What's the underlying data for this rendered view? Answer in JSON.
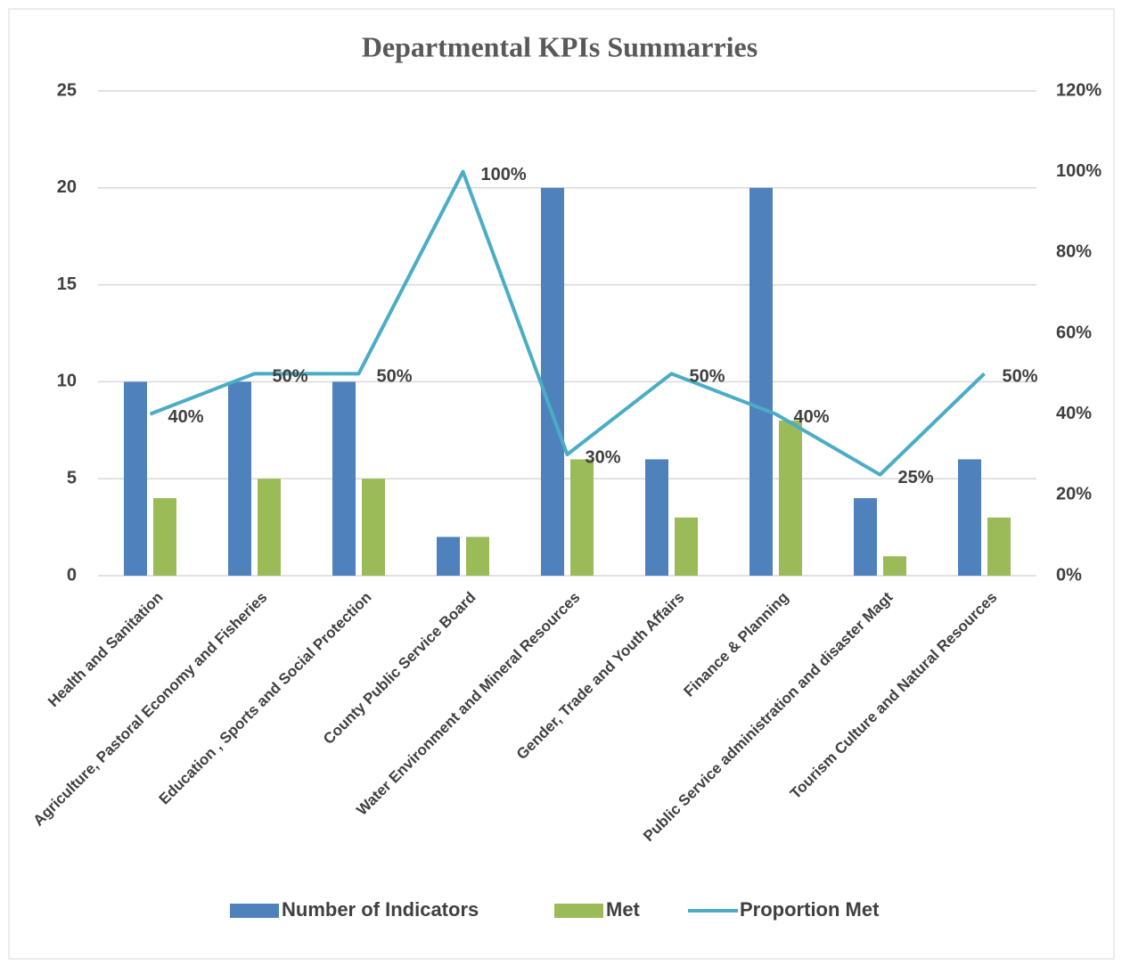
{
  "chart_data": {
    "type": "bar-line",
    "title": "Departmental KPIs Summarries",
    "categories": [
      "Health and Sanitation",
      "Agriculture, Pastoral Economy and Fisheries",
      "Education , Sports and Social Protection",
      "County Public Service Board",
      "Water Environment and Mineral Resources",
      "Gender, Trade and Youth Affairs",
      "Finance & Planning",
      "Public Service administration and disaster Magt",
      "Tourism Culture and Natural Resources"
    ],
    "series": [
      {
        "name": "Number of Indicators",
        "type": "bar",
        "color": "#4f81bd",
        "values": [
          10,
          10,
          10,
          2,
          20,
          6,
          20,
          4,
          6
        ]
      },
      {
        "name": "Met",
        "type": "bar",
        "color": "#9bbb59",
        "values": [
          4,
          5,
          5,
          2,
          6,
          3,
          8,
          1,
          3
        ]
      },
      {
        "name": "Proportion Met",
        "type": "line",
        "axis": "y2",
        "color": "#4bacc6",
        "values": [
          40,
          50,
          50,
          100,
          30,
          50,
          40,
          25,
          50
        ],
        "value_labels": [
          "40%",
          "50%",
          "50%",
          "100%",
          "30%",
          "50%",
          "40%",
          "25%",
          "50%"
        ]
      }
    ],
    "ylim": [
      0,
      25
    ],
    "yticks": [
      0,
      5,
      10,
      15,
      20,
      25
    ],
    "y2lim": [
      0,
      120
    ],
    "y2ticks": [
      {
        "value": 0,
        "label": "0%"
      },
      {
        "value": 20,
        "label": "20%"
      },
      {
        "value": 40,
        "label": "40%"
      },
      {
        "value": 60,
        "label": "60%"
      },
      {
        "value": 80,
        "label": "80%"
      },
      {
        "value": 100,
        "label": "100%"
      },
      {
        "value": 120,
        "label": "120%"
      }
    ],
    "grid": true,
    "legend": "bottom"
  }
}
